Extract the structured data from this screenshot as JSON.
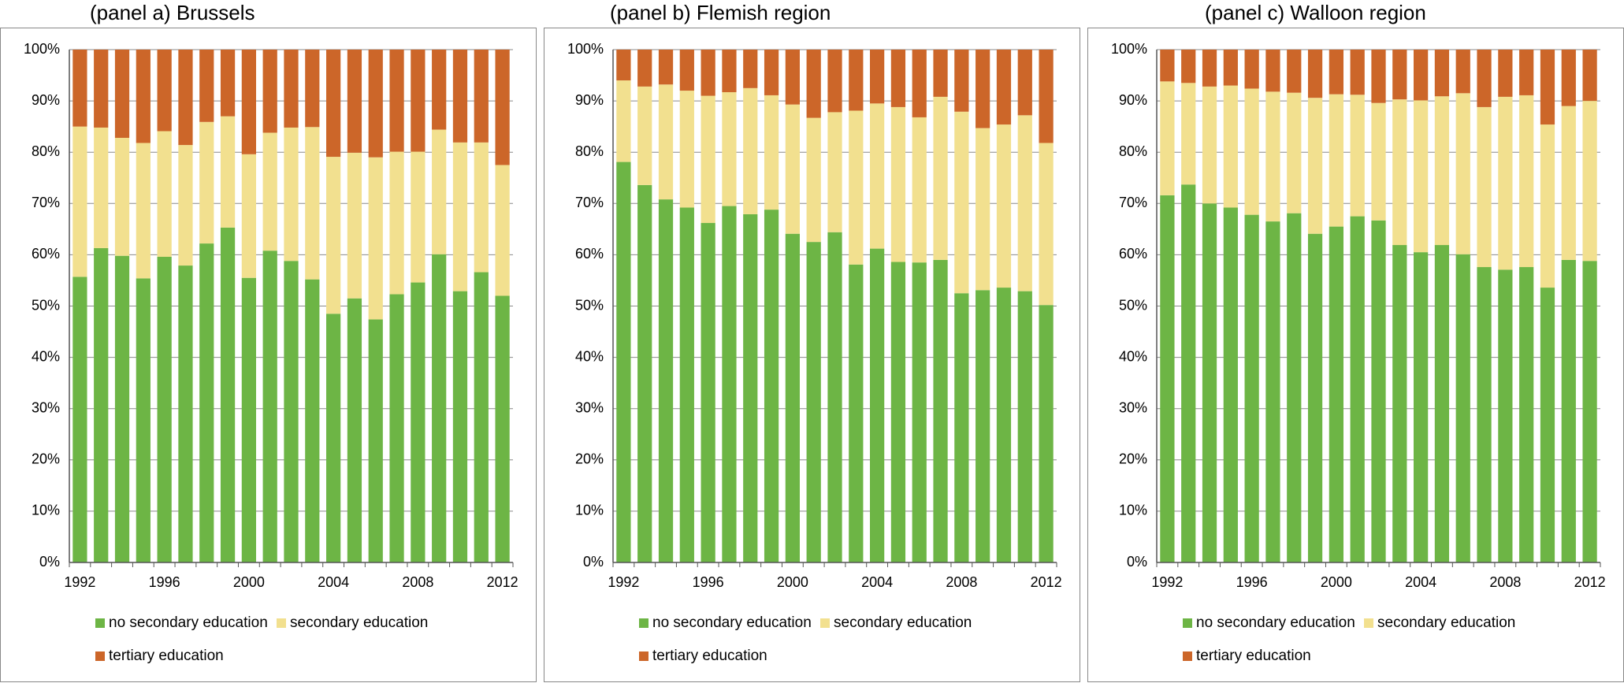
{
  "chart_data": [
    {
      "type": "bar",
      "stacked": true,
      "title": "(panel a) Brussels",
      "categories": [
        "1992",
        null,
        null,
        null,
        "1996",
        null,
        null,
        null,
        "2000",
        null,
        null,
        null,
        "2004",
        null,
        null,
        null,
        "2008",
        null,
        null,
        null,
        "2012"
      ],
      "series": [
        {
          "name": "no secondary education",
          "color": "#6db545",
          "values": [
            55.7,
            61.3,
            59.8,
            55.4,
            59.6,
            57.9,
            62.2,
            65.3,
            55.5,
            60.8,
            58.8,
            55.2,
            48.5,
            51.5,
            47.4,
            52.3,
            54.6,
            60.1,
            52.9,
            56.6,
            52.0
          ]
        },
        {
          "name": "secondary education",
          "color": "#f2e08f",
          "values": [
            29.3,
            23.5,
            23.0,
            26.4,
            24.5,
            23.5,
            23.7,
            21.7,
            24.1,
            23.0,
            26.0,
            29.7,
            30.6,
            28.4,
            31.6,
            27.8,
            25.5,
            24.3,
            29.0,
            25.3,
            25.5
          ]
        },
        {
          "name": "tertiary education",
          "color": "#cc6629",
          "values": [
            15.0,
            15.2,
            17.2,
            18.2,
            15.9,
            18.6,
            14.1,
            13.0,
            20.4,
            16.2,
            15.2,
            15.1,
            20.9,
            20.1,
            21.0,
            19.9,
            19.9,
            15.6,
            18.1,
            18.1,
            22.5
          ]
        }
      ],
      "ylim": [
        0,
        100
      ],
      "yticks": [
        {
          "value": 0,
          "label": "0%"
        },
        {
          "value": 10,
          "label": "10%"
        },
        {
          "value": 20,
          "label": "20%"
        },
        {
          "value": 30,
          "label": "30%"
        },
        {
          "value": 40,
          "label": "40%"
        },
        {
          "value": 50,
          "label": "50%"
        },
        {
          "value": 60,
          "label": "60%"
        },
        {
          "value": 70,
          "label": "70%"
        },
        {
          "value": 80,
          "label": "80%"
        },
        {
          "value": 90,
          "label": "90%"
        },
        {
          "value": 100,
          "label": "100%"
        }
      ],
      "grid": true,
      "legend": "bottom"
    },
    {
      "type": "bar",
      "stacked": true,
      "title": "(panel b) Flemish region",
      "categories": [
        "1992",
        null,
        null,
        null,
        "1996",
        null,
        null,
        null,
        "2000",
        null,
        null,
        null,
        "2004",
        null,
        null,
        null,
        "2008",
        null,
        null,
        null,
        "2012"
      ],
      "series": [
        {
          "name": "no secondary education",
          "color": "#6db545",
          "values": [
            78.1,
            73.6,
            70.8,
            69.2,
            66.2,
            69.5,
            67.9,
            68.8,
            64.1,
            62.5,
            64.4,
            58.1,
            61.2,
            58.6,
            58.5,
            59.0,
            52.5,
            53.1,
            53.6,
            52.9,
            50.2
          ]
        },
        {
          "name": "secondary education",
          "color": "#f2e08f",
          "values": [
            15.9,
            19.2,
            22.4,
            22.8,
            24.8,
            22.2,
            24.6,
            22.3,
            25.2,
            24.2,
            23.4,
            30.0,
            28.3,
            30.2,
            28.3,
            31.8,
            35.4,
            31.6,
            31.8,
            34.3,
            31.6
          ]
        },
        {
          "name": "tertiary education",
          "color": "#cc6629",
          "values": [
            6.0,
            7.2,
            6.8,
            8.0,
            9.0,
            8.3,
            7.5,
            8.9,
            10.7,
            13.3,
            12.2,
            11.9,
            10.5,
            11.2,
            13.2,
            9.2,
            12.1,
            15.3,
            14.6,
            12.8,
            18.2
          ]
        }
      ],
      "ylim": [
        0,
        100
      ],
      "yticks": [
        {
          "value": 0,
          "label": "0%"
        },
        {
          "value": 10,
          "label": "10%"
        },
        {
          "value": 20,
          "label": "20%"
        },
        {
          "value": 30,
          "label": "30%"
        },
        {
          "value": 40,
          "label": "40%"
        },
        {
          "value": 50,
          "label": "50%"
        },
        {
          "value": 60,
          "label": "60%"
        },
        {
          "value": 70,
          "label": "70%"
        },
        {
          "value": 80,
          "label": "80%"
        },
        {
          "value": 90,
          "label": "90%"
        },
        {
          "value": 100,
          "label": "100%"
        }
      ],
      "grid": true,
      "legend": "bottom"
    },
    {
      "type": "bar",
      "stacked": true,
      "title": "(panel c) Walloon region",
      "categories": [
        "1992",
        null,
        null,
        null,
        "1996",
        null,
        null,
        null,
        "2000",
        null,
        null,
        null,
        "2004",
        null,
        null,
        null,
        "2008",
        null,
        null,
        null,
        "2012"
      ],
      "series": [
        {
          "name": "no secondary education",
          "color": "#6db545",
          "values": [
            71.6,
            73.7,
            70.0,
            69.2,
            67.8,
            66.5,
            68.1,
            64.1,
            65.5,
            67.5,
            66.7,
            61.9,
            60.5,
            61.9,
            60.1,
            57.6,
            57.1,
            57.6,
            53.6,
            59.0,
            58.8
          ]
        },
        {
          "name": "secondary education",
          "color": "#f2e08f",
          "values": [
            22.2,
            19.8,
            22.8,
            23.8,
            24.6,
            25.3,
            23.5,
            26.5,
            25.8,
            23.7,
            22.9,
            28.4,
            29.6,
            29.0,
            31.4,
            31.2,
            33.7,
            33.5,
            31.8,
            30.0,
            31.2
          ]
        },
        {
          "name": "tertiary education",
          "color": "#cc6629",
          "values": [
            6.2,
            6.5,
            7.2,
            7.0,
            7.6,
            8.2,
            8.4,
            9.4,
            8.7,
            8.8,
            10.4,
            9.7,
            9.9,
            9.1,
            8.5,
            11.2,
            9.2,
            8.9,
            14.6,
            11.0,
            10.0
          ]
        }
      ],
      "ylim": [
        0,
        100
      ],
      "yticks": [
        {
          "value": 0,
          "label": "0%"
        },
        {
          "value": 10,
          "label": "10%"
        },
        {
          "value": 20,
          "label": "20%"
        },
        {
          "value": 30,
          "label": "30%"
        },
        {
          "value": 40,
          "label": "40%"
        },
        {
          "value": 50,
          "label": "50%"
        },
        {
          "value": 60,
          "label": "60%"
        },
        {
          "value": 70,
          "label": "70%"
        },
        {
          "value": 80,
          "label": "80%"
        },
        {
          "value": 90,
          "label": "90%"
        },
        {
          "value": 100,
          "label": "100%"
        }
      ],
      "grid": true,
      "legend": "bottom"
    }
  ]
}
